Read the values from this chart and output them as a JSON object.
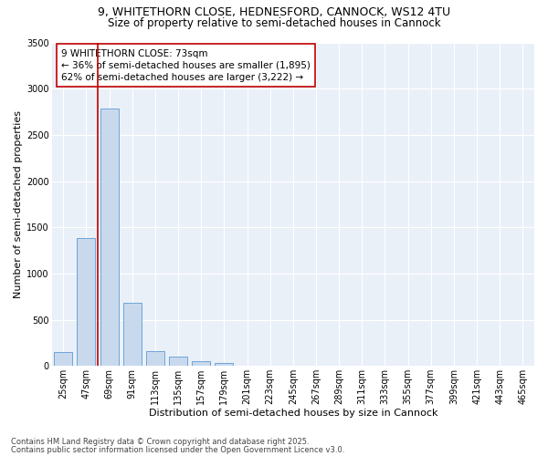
{
  "title_line1": "9, WHITETHORN CLOSE, HEDNESFORD, CANNOCK, WS12 4TU",
  "title_line2": "Size of property relative to semi-detached houses in Cannock",
  "xlabel": "Distribution of semi-detached houses by size in Cannock",
  "ylabel": "Number of semi-detached properties",
  "categories": [
    "25sqm",
    "47sqm",
    "69sqm",
    "91sqm",
    "113sqm",
    "135sqm",
    "157sqm",
    "179sqm",
    "201sqm",
    "223sqm",
    "245sqm",
    "267sqm",
    "289sqm",
    "311sqm",
    "333sqm",
    "355sqm",
    "377sqm",
    "399sqm",
    "421sqm",
    "443sqm",
    "465sqm"
  ],
  "values": [
    150,
    1380,
    2780,
    680,
    160,
    100,
    55,
    30,
    0,
    0,
    0,
    0,
    0,
    0,
    0,
    0,
    0,
    0,
    0,
    0,
    0
  ],
  "bar_color": "#c9d9ed",
  "bar_edge_color": "#5b9bd5",
  "vline_color": "#c00000",
  "vline_x": 1.5,
  "annotation_text": "9 WHITETHORN CLOSE: 73sqm\n← 36% of semi-detached houses are smaller (1,895)\n62% of semi-detached houses are larger (3,222) →",
  "annotation_box_facecolor": "#ffffff",
  "annotation_box_edgecolor": "#c00000",
  "ylim": [
    0,
    3500
  ],
  "yticks": [
    0,
    500,
    1000,
    1500,
    2000,
    2500,
    3000,
    3500
  ],
  "bg_color": "#eaf0f8",
  "footer_line1": "Contains HM Land Registry data © Crown copyright and database right 2025.",
  "footer_line2": "Contains public sector information licensed under the Open Government Licence v3.0.",
  "title1_fontsize": 9,
  "title2_fontsize": 8.5,
  "axis_label_fontsize": 8,
  "tick_fontsize": 7,
  "annotation_fontsize": 7.5,
  "footer_fontsize": 6
}
